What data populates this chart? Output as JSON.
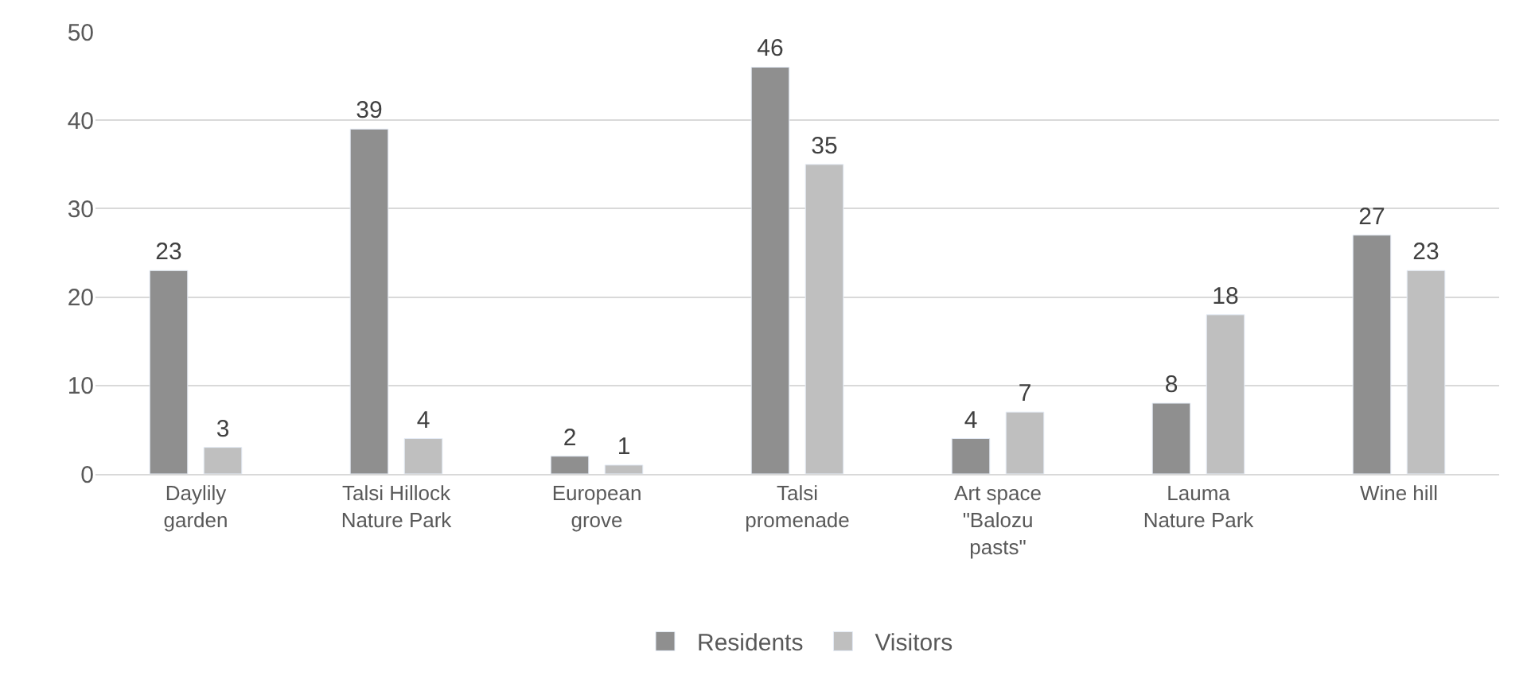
{
  "chart_data": {
    "type": "bar",
    "categories": [
      "Daylily\ngarden",
      "Talsi Hillock\nNature Park",
      "European\ngrove",
      "Talsi\npromenade",
      "Art space\n\"Balozu\npasts\"",
      "Lauma\nNature Park",
      "Wine hill"
    ],
    "series": [
      {
        "name": "Residents",
        "color": "#8f8f8f",
        "values": [
          23,
          39,
          2,
          46,
          4,
          8,
          27
        ]
      },
      {
        "name": "Visitors",
        "color": "#bfbfbf",
        "values": [
          3,
          4,
          1,
          35,
          7,
          18,
          23
        ]
      }
    ],
    "ylim": [
      0,
      50
    ],
    "yticks": [
      0,
      10,
      20,
      30,
      40,
      50
    ],
    "grid": "y",
    "legend": "bottom",
    "data_labels": true
  }
}
